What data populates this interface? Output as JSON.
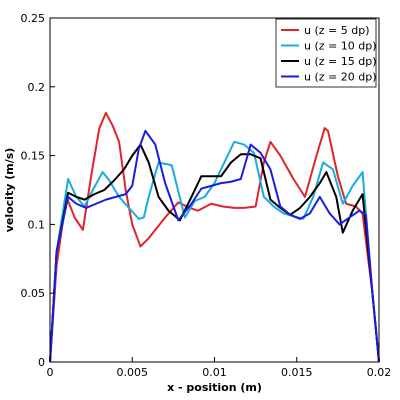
{
  "chart_data": {
    "type": "line",
    "title": "",
    "xlabel": "x - position (m)",
    "ylabel": "velocity (m/s)",
    "xlim": [
      0,
      0.02
    ],
    "ylim": [
      0,
      0.25
    ],
    "x_ticks": [
      0,
      0.005,
      0.01,
      0.015,
      0.02
    ],
    "x_tick_labels": [
      "0",
      "0.005",
      "0.01",
      "0.015",
      "0.02"
    ],
    "y_ticks": [
      0,
      0.05,
      0.1,
      0.15,
      0.2,
      0.25
    ],
    "y_tick_labels": [
      "0",
      "0.05",
      "0.1",
      "0.15",
      "0.2",
      "0.25"
    ],
    "grid": false,
    "legend_position": "top-right",
    "series": [
      {
        "name": "u (z = 5 dp)",
        "color": "#e0242b",
        "x": [
          0,
          0.0004,
          0.001,
          0.0015,
          0.002,
          0.0025,
          0.003,
          0.0034,
          0.0038,
          0.0042,
          0.0046,
          0.005,
          0.0055,
          0.006,
          0.007,
          0.0078,
          0.0085,
          0.009,
          0.0098,
          0.0105,
          0.0112,
          0.0118,
          0.0125,
          0.013,
          0.0134,
          0.014,
          0.0148,
          0.0155,
          0.0162,
          0.0167,
          0.0169,
          0.0175,
          0.018,
          0.0186,
          0.019,
          0.0196,
          0.02
        ],
        "y": [
          0,
          0.07,
          0.12,
          0.105,
          0.096,
          0.135,
          0.17,
          0.181,
          0.172,
          0.16,
          0.125,
          0.1,
          0.084,
          0.09,
          0.105,
          0.116,
          0.112,
          0.11,
          0.115,
          0.113,
          0.112,
          0.112,
          0.113,
          0.145,
          0.16,
          0.15,
          0.133,
          0.12,
          0.15,
          0.17,
          0.168,
          0.135,
          0.115,
          0.113,
          0.108,
          0.05,
          0
        ]
      },
      {
        "name": "u (z = 10 dp)",
        "color": "#19acdf",
        "x": [
          0,
          0.0004,
          0.0011,
          0.0016,
          0.0021,
          0.0026,
          0.0032,
          0.0036,
          0.0042,
          0.0048,
          0.0054,
          0.0057,
          0.006,
          0.0066,
          0.0074,
          0.0082,
          0.0088,
          0.0094,
          0.01,
          0.0106,
          0.0112,
          0.0118,
          0.0124,
          0.013,
          0.0136,
          0.0142,
          0.0148,
          0.0154,
          0.016,
          0.0166,
          0.0172,
          0.0178,
          0.0184,
          0.019,
          0.0196,
          0.02
        ],
        "y": [
          0,
          0.08,
          0.133,
          0.12,
          0.113,
          0.125,
          0.138,
          0.132,
          0.12,
          0.112,
          0.104,
          0.105,
          0.12,
          0.145,
          0.143,
          0.105,
          0.117,
          0.12,
          0.13,
          0.145,
          0.16,
          0.158,
          0.152,
          0.12,
          0.113,
          0.108,
          0.106,
          0.104,
          0.12,
          0.145,
          0.14,
          0.115,
          0.128,
          0.138,
          0.05,
          0
        ]
      },
      {
        "name": "u (z = 15 dp)",
        "color": "#000000",
        "x": [
          0,
          0.0004,
          0.0011,
          0.0016,
          0.0021,
          0.0027,
          0.0033,
          0.0039,
          0.0045,
          0.005,
          0.0055,
          0.006,
          0.0066,
          0.0072,
          0.0079,
          0.0086,
          0.0092,
          0.0098,
          0.0104,
          0.011,
          0.0116,
          0.0122,
          0.0128,
          0.0134,
          0.014,
          0.0146,
          0.0152,
          0.0158,
          0.0164,
          0.0168,
          0.0174,
          0.0178,
          0.0184,
          0.019,
          0.0196,
          0.02
        ],
        "y": [
          0,
          0.08,
          0.123,
          0.12,
          0.118,
          0.122,
          0.125,
          0.132,
          0.14,
          0.15,
          0.158,
          0.145,
          0.12,
          0.11,
          0.103,
          0.12,
          0.135,
          0.135,
          0.135,
          0.145,
          0.151,
          0.151,
          0.148,
          0.118,
          0.112,
          0.107,
          0.112,
          0.12,
          0.13,
          0.138,
          0.12,
          0.094,
          0.11,
          0.122,
          0.05,
          0
        ]
      },
      {
        "name": "u (z = 20 dp)",
        "color": "#1c1ce0",
        "x": [
          0,
          0.0004,
          0.0011,
          0.0016,
          0.0022,
          0.0028,
          0.0034,
          0.004,
          0.0046,
          0.005,
          0.0054,
          0.0058,
          0.0064,
          0.007,
          0.0078,
          0.0086,
          0.0092,
          0.0098,
          0.0104,
          0.011,
          0.0116,
          0.0122,
          0.0128,
          0.0134,
          0.014,
          0.0146,
          0.0152,
          0.0158,
          0.0164,
          0.017,
          0.0176,
          0.0182,
          0.0188,
          0.0192,
          0.0196,
          0.02
        ],
        "y": [
          0,
          0.08,
          0.12,
          0.115,
          0.112,
          0.115,
          0.118,
          0.12,
          0.122,
          0.128,
          0.155,
          0.168,
          0.158,
          0.13,
          0.103,
          0.115,
          0.126,
          0.128,
          0.13,
          0.131,
          0.133,
          0.158,
          0.152,
          0.14,
          0.113,
          0.107,
          0.104,
          0.108,
          0.12,
          0.108,
          0.1,
          0.105,
          0.11,
          0.107,
          0.05,
          0
        ]
      }
    ]
  }
}
